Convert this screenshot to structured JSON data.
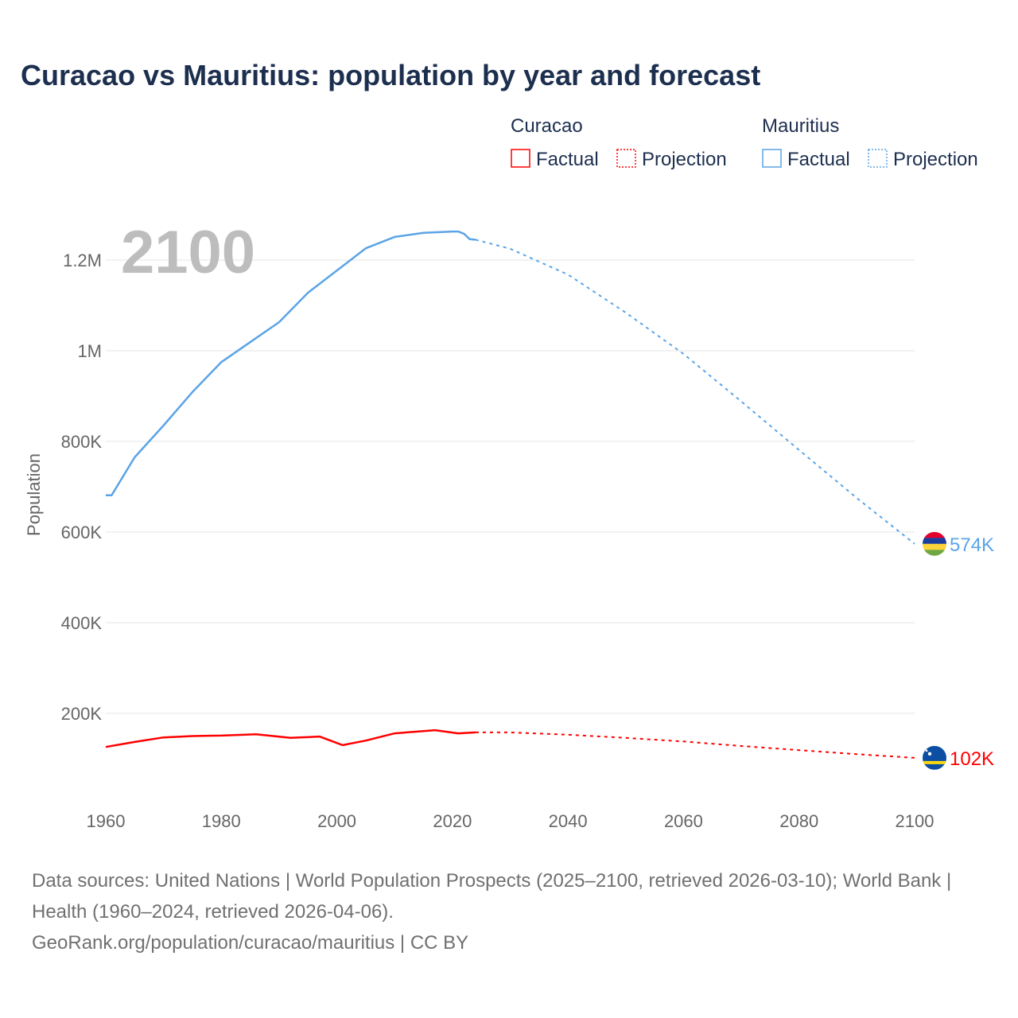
{
  "title": "Curacao vs Mauritius: population by year and forecast",
  "legend": {
    "groups": [
      {
        "name": "Curacao",
        "color": "#ff0000",
        "factual": "Factual",
        "projection": "Projection"
      },
      {
        "name": "Mauritius",
        "color": "#5ba4e6",
        "factual": "Factual",
        "projection": "Projection"
      }
    ]
  },
  "footer": {
    "sources": "Data sources: United Nations | World Population Prospects (2025–2100, retrieved 2026-03-10); World Bank | Health (1960–2024, retrieved 2026-04-06).",
    "link": "GeoRank.org/population/curacao/mauritius | CC BY"
  },
  "chart_data": {
    "type": "line",
    "title": "Curacao vs Mauritius: population by year and forecast",
    "year_label": "2100",
    "xlabel": "",
    "ylabel": "Population",
    "xlim": [
      1960,
      2100
    ],
    "ylim": [
      0,
      1300000
    ],
    "x_ticks": [
      1960,
      1980,
      2000,
      2020,
      2040,
      2060,
      2080,
      2100
    ],
    "y_ticks": [
      {
        "v": 200000,
        "l": "200K"
      },
      {
        "v": 400000,
        "l": "400K"
      },
      {
        "v": 600000,
        "l": "600K"
      },
      {
        "v": 800000,
        "l": "800K"
      },
      {
        "v": 1000000,
        "l": "1M"
      },
      {
        "v": 1200000,
        "l": "1.2M"
      }
    ],
    "grid": true,
    "legend_position": "top-right",
    "series": [
      {
        "name": "Curacao",
        "color": "#ff0000",
        "end_label": "102K",
        "factual": [
          [
            1960,
            126000
          ],
          [
            1965,
            137000
          ],
          [
            1970,
            147000
          ],
          [
            1975,
            150000
          ],
          [
            1980,
            151000
          ],
          [
            1986,
            154000
          ],
          [
            1992,
            146000
          ],
          [
            1997,
            149000
          ],
          [
            2001,
            130000
          ],
          [
            2005,
            140000
          ],
          [
            2010,
            156000
          ],
          [
            2017,
            163000
          ],
          [
            2021,
            156000
          ],
          [
            2024,
            158000
          ]
        ],
        "projection": [
          [
            2024,
            158000
          ],
          [
            2030,
            158000
          ],
          [
            2040,
            153000
          ],
          [
            2050,
            146000
          ],
          [
            2060,
            138000
          ],
          [
            2070,
            128000
          ],
          [
            2080,
            119000
          ],
          [
            2090,
            110000
          ],
          [
            2100,
            102000
          ]
        ]
      },
      {
        "name": "Mauritius",
        "color": "#5ba4e6",
        "end_label": "574K",
        "factual": [
          [
            1960,
            681000
          ],
          [
            1961,
            681000
          ],
          [
            1965,
            765000
          ],
          [
            1970,
            835000
          ],
          [
            1975,
            909000
          ],
          [
            1980,
            975000
          ],
          [
            1985,
            1019000
          ],
          [
            1990,
            1063000
          ],
          [
            1995,
            1128000
          ],
          [
            2000,
            1177000
          ],
          [
            2005,
            1226000
          ],
          [
            2010,
            1251000
          ],
          [
            2015,
            1260000
          ],
          [
            2020,
            1263000
          ],
          [
            2021,
            1263000
          ],
          [
            2022,
            1258000
          ],
          [
            2023,
            1246000
          ],
          [
            2024,
            1245000
          ]
        ],
        "projection": [
          [
            2024,
            1245000
          ],
          [
            2030,
            1225000
          ],
          [
            2040,
            1168000
          ],
          [
            2050,
            1084000
          ],
          [
            2060,
            993000
          ],
          [
            2070,
            888000
          ],
          [
            2080,
            781000
          ],
          [
            2090,
            675000
          ],
          [
            2100,
            574000
          ]
        ]
      }
    ]
  }
}
